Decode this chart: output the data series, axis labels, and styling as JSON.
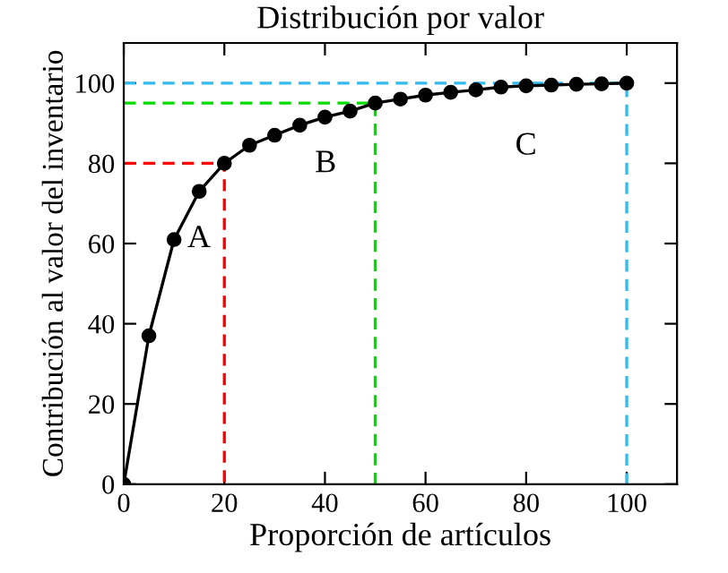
{
  "chart_data": {
    "type": "line",
    "title": "Distribución por valor",
    "xlabel": "Proporción de artículos",
    "ylabel": "Contribución al valor del inventario",
    "xlim": [
      0,
      110
    ],
    "ylim": [
      0,
      110
    ],
    "xticks": [
      0,
      20,
      40,
      60,
      80,
      100
    ],
    "yticks": [
      0,
      20,
      40,
      60,
      80,
      100
    ],
    "grid": false,
    "legend": false,
    "series": [
      {
        "color": "#ff0000",
        "line_style": "dashed",
        "marker": "none",
        "x": [
          0,
          20,
          20
        ],
        "values": [
          80,
          80,
          0
        ]
      },
      {
        "color": "#00dd00",
        "line_style": "dashed",
        "marker": "none",
        "x": [
          0,
          50,
          50
        ],
        "values": [
          95,
          95,
          0
        ]
      },
      {
        "color": "#33bbee",
        "line_style": "dashed",
        "marker": "none",
        "x": [
          0,
          100,
          100
        ],
        "values": [
          100,
          100,
          0
        ]
      },
      {
        "color": "#000000",
        "line_style": "solid",
        "marker": "circle",
        "x": [
          0,
          5,
          10,
          15,
          20,
          25,
          30,
          35,
          40,
          45,
          50,
          55,
          60,
          65,
          70,
          75,
          80,
          85,
          90,
          95,
          100
        ],
        "values": [
          0,
          37,
          61,
          73,
          80,
          84.5,
          87,
          89.5,
          91.5,
          93,
          95,
          96,
          97,
          97.7,
          98.3,
          99,
          99.3,
          99.5,
          99.7,
          99.8,
          100
        ]
      }
    ],
    "annotations": [
      "A",
      "B",
      "C"
    ]
  }
}
